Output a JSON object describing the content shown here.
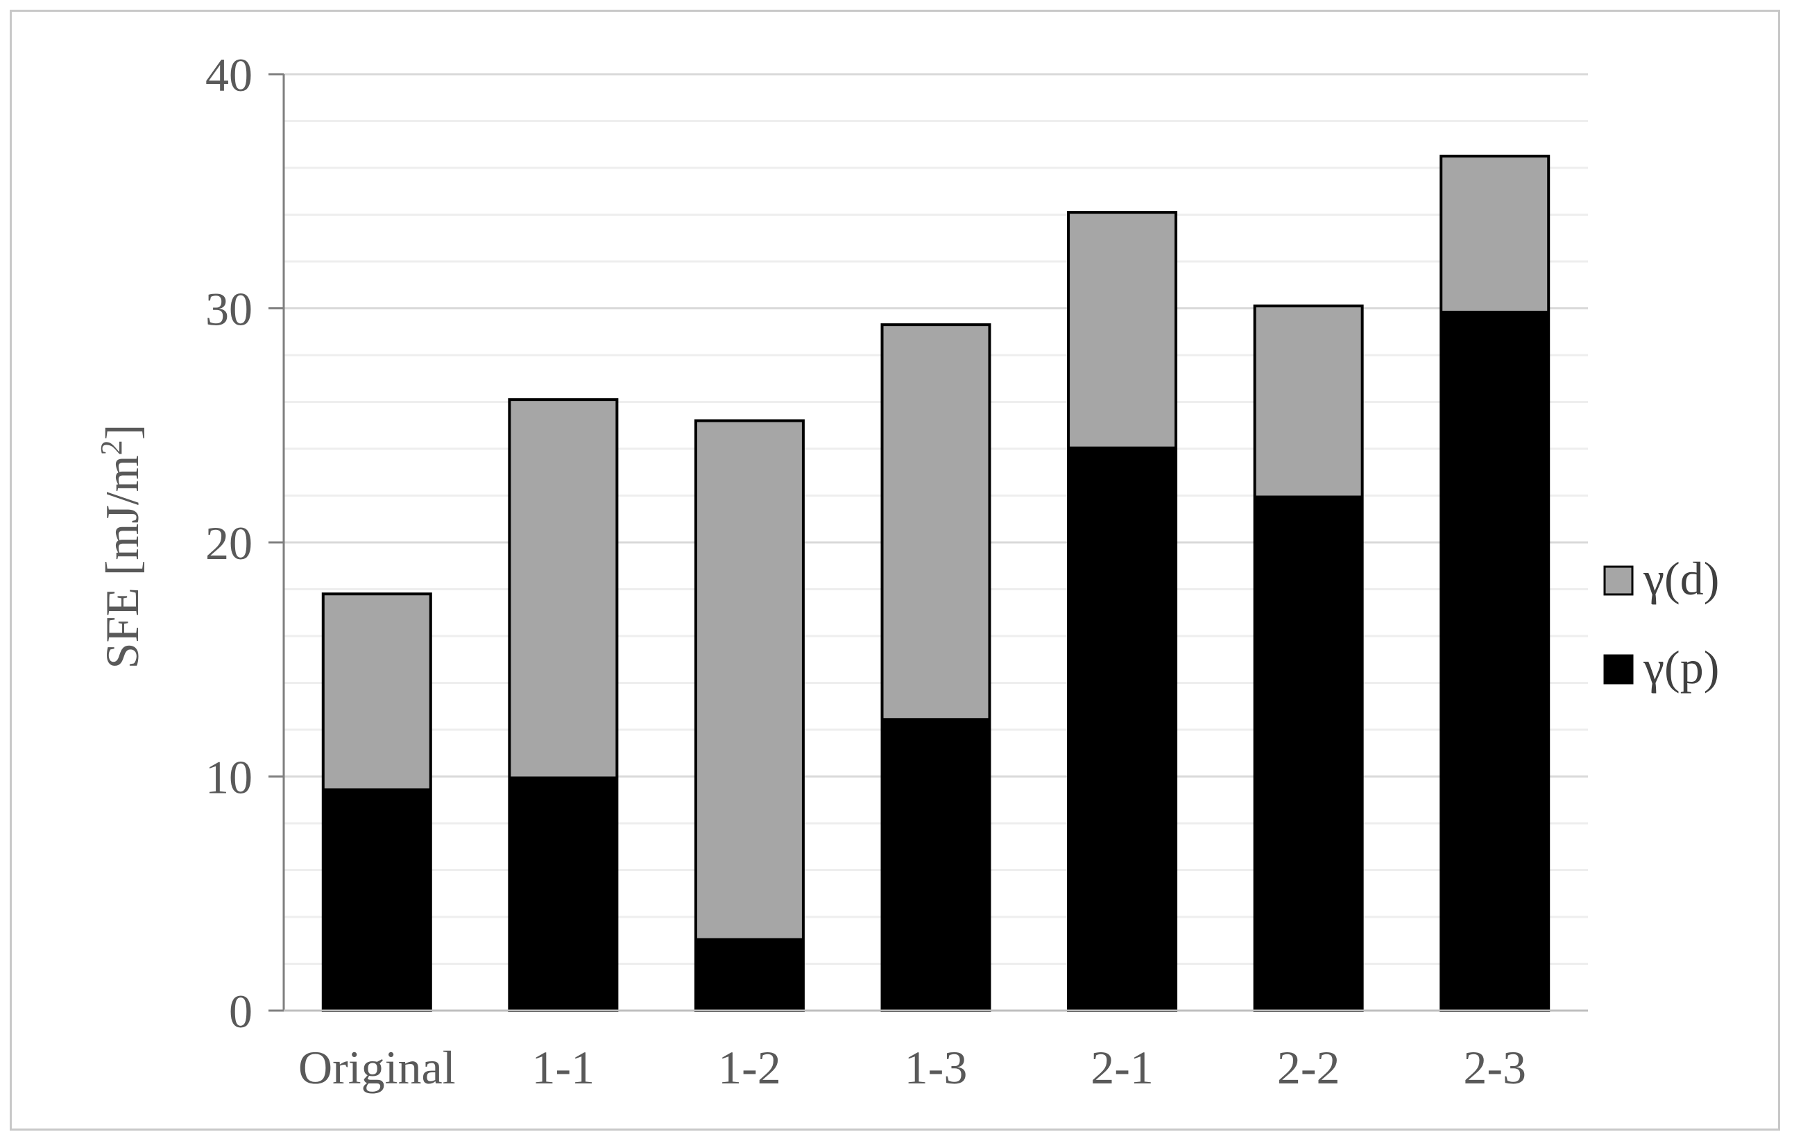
{
  "chart_data": {
    "type": "bar",
    "stacked": true,
    "categories": [
      "Original",
      "1-1",
      "1-2",
      "1-3",
      "2-1",
      "2-2",
      "2-3"
    ],
    "series": [
      {
        "name": "γ(p)",
        "color": "#000000",
        "values": [
          9.5,
          10.0,
          3.1,
          12.5,
          24.1,
          22.0,
          29.9
        ]
      },
      {
        "name": "γ(d)",
        "color": "#a6a6a6",
        "values": [
          8.3,
          16.1,
          22.1,
          16.8,
          10.0,
          8.1,
          6.6
        ]
      }
    ],
    "totals": [
      17.8,
      26.1,
      25.2,
      29.3,
      34.1,
      30.1,
      36.5
    ],
    "ylabel": "SFE [mJ/m²]",
    "ylabel_main": "SFE [mJ/m",
    "ylabel_sup": "2",
    "ylabel_end": "]",
    "ylim": [
      0,
      40
    ],
    "yticks": [
      0,
      10,
      20,
      30,
      40
    ],
    "minor_step": 2,
    "grid": true,
    "legend_position": "right",
    "legend_order": [
      "γ(d)",
      "γ(p)"
    ]
  }
}
